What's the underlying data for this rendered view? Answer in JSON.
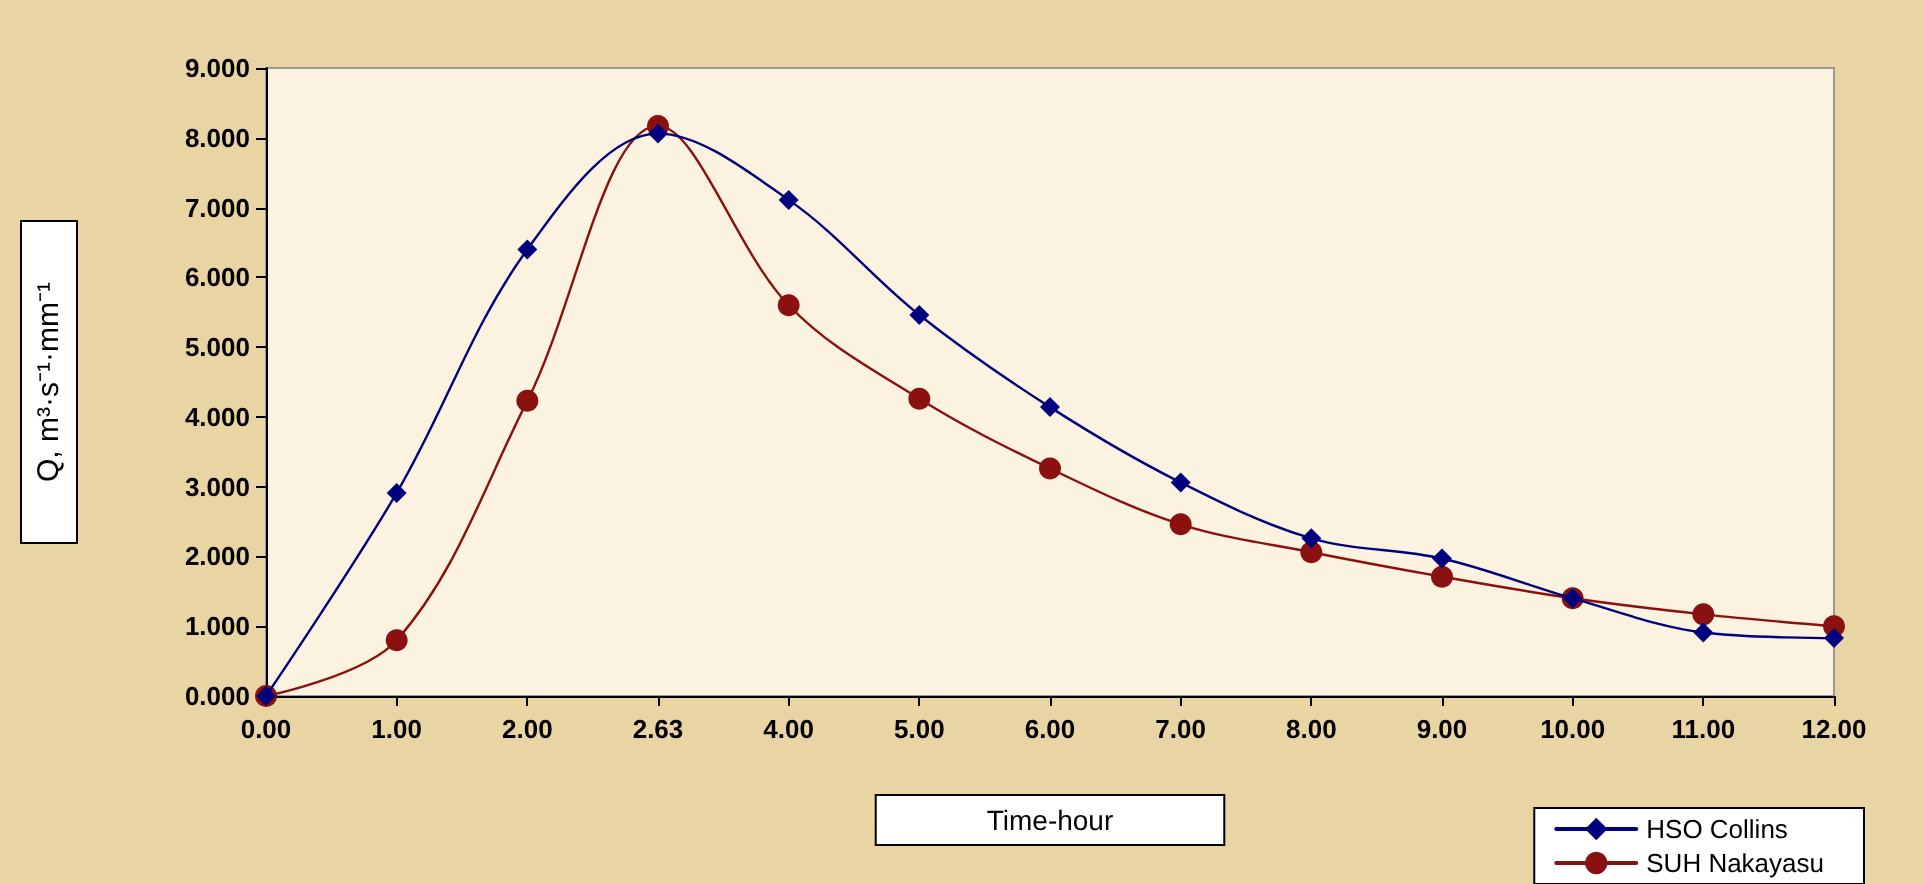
{
  "chart_data": {
    "type": "line",
    "xlabel": "Time-hour",
    "ylabel": "Q, m³·s⁻¹·mm⁻¹",
    "categories": [
      "0.00",
      "1.00",
      "2.00",
      "2.63",
      "4.00",
      "5.00",
      "6.00",
      "7.00",
      "8.00",
      "9.00",
      "10.00",
      "11.00",
      "12.00"
    ],
    "ylim": [
      0,
      9
    ],
    "yticks": [
      {
        "value": 0,
        "label": "0.000"
      },
      {
        "value": 1,
        "label": "1.000"
      },
      {
        "value": 2,
        "label": "2.000"
      },
      {
        "value": 3,
        "label": "3.000"
      },
      {
        "value": 4,
        "label": "4.000"
      },
      {
        "value": 5,
        "label": "5.000"
      },
      {
        "value": 6,
        "label": "6.000"
      },
      {
        "value": 7,
        "label": "7.000"
      },
      {
        "value": 8,
        "label": "8.000"
      },
      {
        "value": 9,
        "label": "9.000"
      }
    ],
    "series": [
      {
        "name": "HSO Collins",
        "color": "#00007f",
        "marker": "diamond",
        "values": [
          0,
          2.91,
          6.4,
          8.06,
          7.11,
          5.46,
          4.14,
          3.06,
          2.26,
          1.97,
          1.4,
          0.91,
          0.83
        ]
      },
      {
        "name": "SUH Nakayasu",
        "color": "#8b1010",
        "marker": "circle",
        "values": [
          0,
          0.8,
          4.23,
          8.17,
          5.6,
          4.26,
          3.26,
          2.46,
          2.06,
          1.71,
          1.4,
          1.17,
          1.0
        ]
      }
    ],
    "grid": false,
    "legend": "bottom right",
    "line_style": "solid"
  }
}
